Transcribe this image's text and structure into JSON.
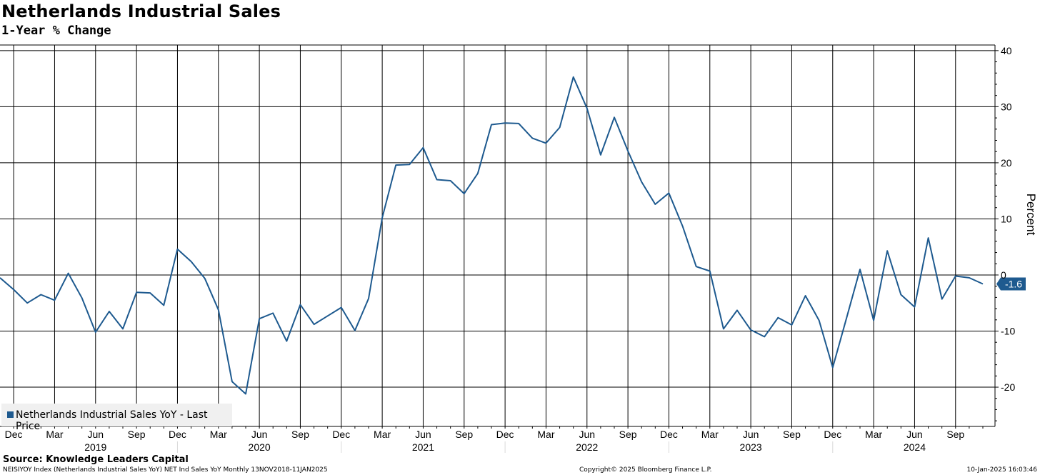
{
  "title": "Netherlands Industrial Sales",
  "subtitle": "1-Year % Change",
  "source": "Source: Knowledge Leaders Capital",
  "footer": {
    "left": "NEISIYOY Index (Netherlands Industrial Sales YoY) NET Ind Sales YoY  Monthly 13NOV2018-11JAN2025",
    "center": "Copyright© 2025 Bloomberg Finance L.P.",
    "right": "10-Jan-2025 16:03:46"
  },
  "legend": {
    "label": "Netherlands Industrial Sales YoY - Last Price"
  },
  "colors": {
    "series": "#1e5a8f",
    "last_tag": "#1e5a8f"
  },
  "chart_data": {
    "type": "line",
    "ylabel": "Percent",
    "ylim": [
      -27,
      41
    ],
    "y_ticks": [
      40,
      30,
      20,
      10,
      0,
      -10,
      -20
    ],
    "y_tick_labels": [
      "40",
      "30",
      "20",
      "10",
      "0",
      "-10",
      "-20"
    ],
    "xlim": [
      "2018-11",
      "2024-12"
    ],
    "month_ticks": [
      {
        "date": "2018-12",
        "label": "Dec"
      },
      {
        "date": "2019-03",
        "label": "Mar"
      },
      {
        "date": "2019-06",
        "label": "Jun"
      },
      {
        "date": "2019-09",
        "label": "Sep"
      },
      {
        "date": "2019-12",
        "label": "Dec"
      },
      {
        "date": "2020-03",
        "label": "Mar"
      },
      {
        "date": "2020-06",
        "label": "Jun"
      },
      {
        "date": "2020-09",
        "label": "Sep"
      },
      {
        "date": "2020-12",
        "label": "Dec"
      },
      {
        "date": "2021-03",
        "label": "Mar"
      },
      {
        "date": "2021-06",
        "label": "Jun"
      },
      {
        "date": "2021-09",
        "label": "Sep"
      },
      {
        "date": "2021-12",
        "label": "Dec"
      },
      {
        "date": "2022-03",
        "label": "Mar"
      },
      {
        "date": "2022-06",
        "label": "Jun"
      },
      {
        "date": "2022-09",
        "label": "Sep"
      },
      {
        "date": "2022-12",
        "label": "Dec"
      },
      {
        "date": "2023-03",
        "label": "Mar"
      },
      {
        "date": "2023-06",
        "label": "Jun"
      },
      {
        "date": "2023-09",
        "label": "Sep"
      },
      {
        "date": "2023-12",
        "label": "Dec"
      },
      {
        "date": "2024-03",
        "label": "Mar"
      },
      {
        "date": "2024-06",
        "label": "Jun"
      },
      {
        "date": "2024-09",
        "label": "Sep"
      }
    ],
    "year_labels": [
      {
        "date": "2019-06",
        "label": "2019"
      },
      {
        "date": "2020-06",
        "label": "2020"
      },
      {
        "date": "2021-06",
        "label": "2021"
      },
      {
        "date": "2022-06",
        "label": "2022"
      },
      {
        "date": "2023-06",
        "label": "2023"
      },
      {
        "date": "2024-06",
        "label": "2024"
      }
    ],
    "year_separators": [
      "2019-12",
      "2020-12",
      "2021-12",
      "2022-12",
      "2023-12"
    ],
    "last_value_label": "-1.6",
    "series": [
      {
        "name": "Netherlands Industrial Sales YoY - Last Price",
        "x": [
          "2018-11",
          "2018-12",
          "2019-01",
          "2019-02",
          "2019-03",
          "2019-04",
          "2019-05",
          "2019-06",
          "2019-07",
          "2019-08",
          "2019-09",
          "2019-10",
          "2019-11",
          "2019-12",
          "2020-01",
          "2020-02",
          "2020-03",
          "2020-04",
          "2020-05",
          "2020-06",
          "2020-07",
          "2020-08",
          "2020-09",
          "2020-10",
          "2020-11",
          "2020-12",
          "2021-01",
          "2021-02",
          "2021-03",
          "2021-04",
          "2021-05",
          "2021-06",
          "2021-07",
          "2021-08",
          "2021-09",
          "2021-10",
          "2021-11",
          "2021-12",
          "2022-01",
          "2022-02",
          "2022-03",
          "2022-04",
          "2022-05",
          "2022-06",
          "2022-07",
          "2022-08",
          "2022-09",
          "2022-10",
          "2022-11",
          "2022-12",
          "2023-01",
          "2023-02",
          "2023-03",
          "2023-04",
          "2023-05",
          "2023-06",
          "2023-07",
          "2023-08",
          "2023-09",
          "2023-10",
          "2023-11",
          "2023-12",
          "2024-01",
          "2024-02",
          "2024-03",
          "2024-04",
          "2024-05",
          "2024-06",
          "2024-07",
          "2024-08",
          "2024-09",
          "2024-10",
          "2024-11"
        ],
        "values": [
          -0.5,
          -2.6,
          -5.0,
          -3.5,
          -4.5,
          0.3,
          -4.1,
          -10.2,
          -6.5,
          -9.6,
          -3.1,
          -3.2,
          -5.4,
          4.6,
          2.4,
          -0.6,
          -6.2,
          -19.0,
          -21.2,
          -7.8,
          -6.8,
          -11.8,
          -5.3,
          -8.8,
          -7.3,
          -5.8,
          -9.9,
          -4.2,
          10.2,
          19.6,
          19.7,
          22.7,
          17.0,
          16.8,
          14.5,
          18.1,
          26.8,
          27.1,
          27.0,
          24.4,
          23.5,
          26.3,
          35.3,
          29.7,
          21.4,
          28.1,
          22.1,
          16.6,
          12.6,
          14.6,
          8.7,
          1.5,
          0.7,
          -9.6,
          -6.3,
          -9.8,
          -11.0,
          -7.6,
          -8.9,
          -3.7,
          -8.1,
          -16.5,
          -7.8,
          1.0,
          -8.1,
          4.3,
          -3.5,
          -5.7,
          6.6,
          -4.3,
          -0.2,
          -0.5,
          -1.6
        ]
      }
    ]
  }
}
